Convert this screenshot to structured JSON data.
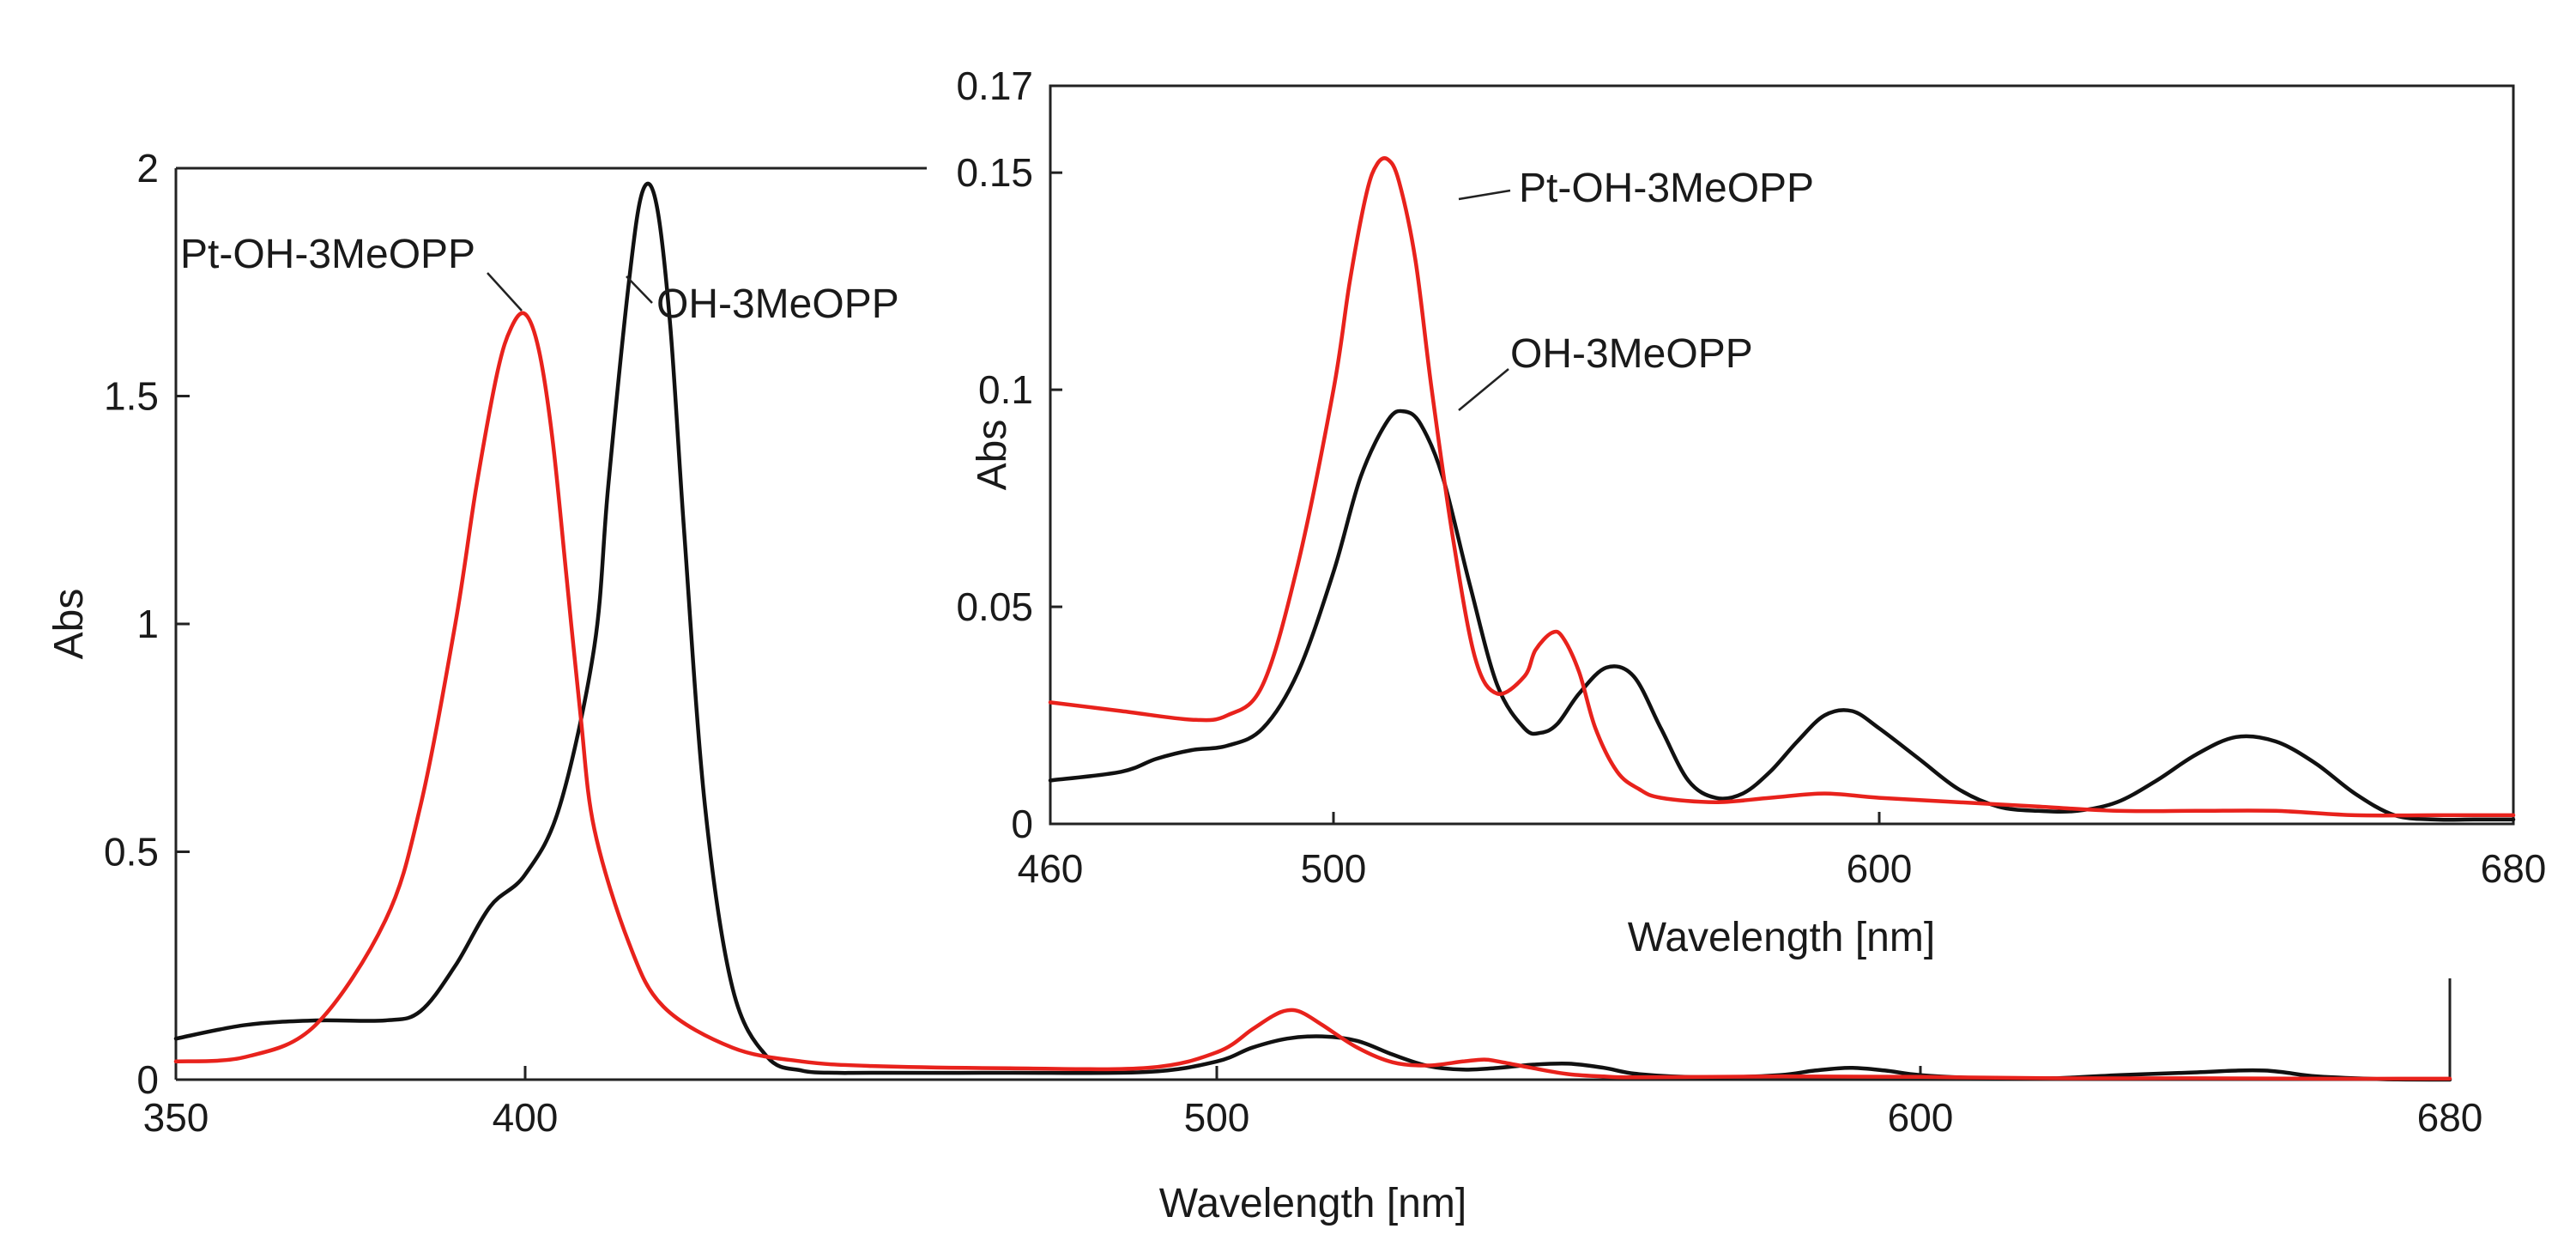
{
  "chart_data": [
    {
      "id": "main",
      "type": "line",
      "title": "",
      "xlabel": "Wavelength [nm]",
      "ylabel": "Abs",
      "xlim": [
        350,
        680
      ],
      "ylim": [
        0,
        2
      ],
      "xticks": [
        350,
        400,
        500,
        600,
        680
      ],
      "xtick_labels": [
        "350",
        "400",
        "500",
        "600",
        "680"
      ],
      "yticks": [
        0,
        0.5,
        1,
        1.5,
        2
      ],
      "ytick_labels": [
        "0",
        "0.5",
        "1",
        "1.5",
        "2"
      ],
      "series": [
        {
          "name": "OH-3MeOPP",
          "color": "#111111",
          "x": [
            350,
            360,
            370,
            380,
            385,
            390,
            395,
            400,
            405,
            410,
            412,
            415,
            417,
            419,
            421,
            423,
            426,
            430,
            435,
            440,
            445,
            450,
            470,
            490,
            500,
            505,
            510,
            515,
            520,
            525,
            530,
            535,
            540,
            545,
            550,
            555,
            560,
            570,
            580,
            585,
            590,
            595,
            600,
            610,
            620,
            630,
            640,
            648,
            652,
            655,
            660,
            670,
            680
          ],
          "y": [
            0.09,
            0.12,
            0.13,
            0.13,
            0.15,
            0.25,
            0.38,
            0.45,
            0.6,
            0.95,
            1.3,
            1.75,
            1.95,
            1.92,
            1.65,
            1.2,
            0.6,
            0.2,
            0.05,
            0.02,
            0.015,
            0.015,
            0.015,
            0.017,
            0.04,
            0.07,
            0.09,
            0.095,
            0.085,
            0.055,
            0.03,
            0.022,
            0.026,
            0.033,
            0.035,
            0.026,
            0.012,
            0.005,
            0.01,
            0.02,
            0.026,
            0.02,
            0.01,
            0.003,
            0.003,
            0.01,
            0.015,
            0.02,
            0.02,
            0.016,
            0.007,
            0.001,
            0.0
          ]
        },
        {
          "name": "Pt-OH-3MeOPP",
          "color": "#e8221c",
          "x": [
            350,
            360,
            370,
            380,
            385,
            390,
            393,
            396,
            398,
            400,
            402,
            404,
            406,
            408,
            410,
            415,
            420,
            430,
            440,
            450,
            470,
            490,
            500,
            505,
            508,
            510,
            512,
            515,
            520,
            525,
            530,
            535,
            538,
            540,
            545,
            550,
            555,
            560,
            580,
            600,
            620,
            640,
            660,
            680
          ],
          "y": [
            0.04,
            0.05,
            0.12,
            0.35,
            0.6,
            1.0,
            1.3,
            1.55,
            1.65,
            1.68,
            1.6,
            1.4,
            1.1,
            0.8,
            0.55,
            0.3,
            0.16,
            0.07,
            0.04,
            0.03,
            0.025,
            0.026,
            0.06,
            0.11,
            0.14,
            0.152,
            0.148,
            0.12,
            0.07,
            0.038,
            0.031,
            0.04,
            0.044,
            0.04,
            0.025,
            0.012,
            0.007,
            0.005,
            0.007,
            0.006,
            0.003,
            0.003,
            0.002,
            0.002
          ]
        }
      ],
      "annotations": [
        {
          "text": "Pt-OH-3MeOPP",
          "series": "Pt-OH-3MeOPP"
        },
        {
          "text": "OH-3MeOPP",
          "series": "OH-3MeOPP"
        }
      ]
    },
    {
      "id": "inset",
      "type": "line",
      "title": "",
      "xlabel": "Wavelength [nm]",
      "ylabel": "Abs",
      "xlim": [
        460,
        680
      ],
      "ylim": [
        0,
        0.17
      ],
      "xticks": [
        460,
        500,
        600,
        680
      ],
      "xtick_labels": [
        "460",
        "500",
        "600",
        "680"
      ],
      "yticks": [
        0,
        0.05,
        0.1,
        0.15,
        0.17
      ],
      "ytick_labels": [
        "0",
        "0.05",
        "0.1",
        "0.15",
        "0.17"
      ],
      "series": [
        {
          "name": "OH-3MeOPP",
          "color": "#111111",
          "x": [
            460,
            470,
            475,
            480,
            485,
            490,
            495,
            500,
            505,
            510,
            513,
            516,
            520,
            525,
            530,
            535,
            538,
            541,
            545,
            550,
            555,
            560,
            565,
            570,
            575,
            580,
            585,
            590,
            595,
            600,
            605,
            610,
            615,
            620,
            625,
            630,
            635,
            640,
            645,
            650,
            655,
            660,
            665,
            670,
            675,
            680
          ],
          "y": [
            0.01,
            0.012,
            0.015,
            0.017,
            0.018,
            0.022,
            0.035,
            0.058,
            0.08,
            0.093,
            0.095,
            0.092,
            0.08,
            0.055,
            0.032,
            0.022,
            0.021,
            0.023,
            0.03,
            0.036,
            0.034,
            0.022,
            0.01,
            0.006,
            0.007,
            0.012,
            0.019,
            0.025,
            0.026,
            0.022,
            0.015,
            0.008,
            0.004,
            0.003,
            0.003,
            0.005,
            0.01,
            0.016,
            0.02,
            0.019,
            0.014,
            0.007,
            0.002,
            0.001,
            0.001,
            0.001
          ]
        },
        {
          "name": "Pt-OH-3MeOPP",
          "color": "#e8221c",
          "x": [
            460,
            470,
            480,
            485,
            490,
            495,
            500,
            503,
            506,
            508,
            510,
            512,
            515,
            518,
            522,
            526,
            530,
            535,
            537,
            540,
            542,
            545,
            548,
            552,
            556,
            560,
            570,
            580,
            590,
            600,
            610,
            620,
            630,
            640,
            650,
            660,
            670,
            680
          ],
          "y": [
            0.028,
            0.026,
            0.024,
            0.025,
            0.032,
            0.06,
            0.1,
            0.125,
            0.145,
            0.152,
            0.153,
            0.148,
            0.13,
            0.1,
            0.065,
            0.038,
            0.03,
            0.034,
            0.04,
            0.044,
            0.043,
            0.035,
            0.022,
            0.012,
            0.008,
            0.006,
            0.005,
            0.006,
            0.007,
            0.006,
            0.005,
            0.004,
            0.003,
            0.003,
            0.003,
            0.002,
            0.002,
            0.002
          ]
        }
      ],
      "annotations": [
        {
          "text": "Pt-OH-3MeOPP",
          "series": "Pt-OH-3MeOPP"
        },
        {
          "text": "OH-3MeOPP",
          "series": "OH-3MeOPP"
        }
      ]
    }
  ]
}
